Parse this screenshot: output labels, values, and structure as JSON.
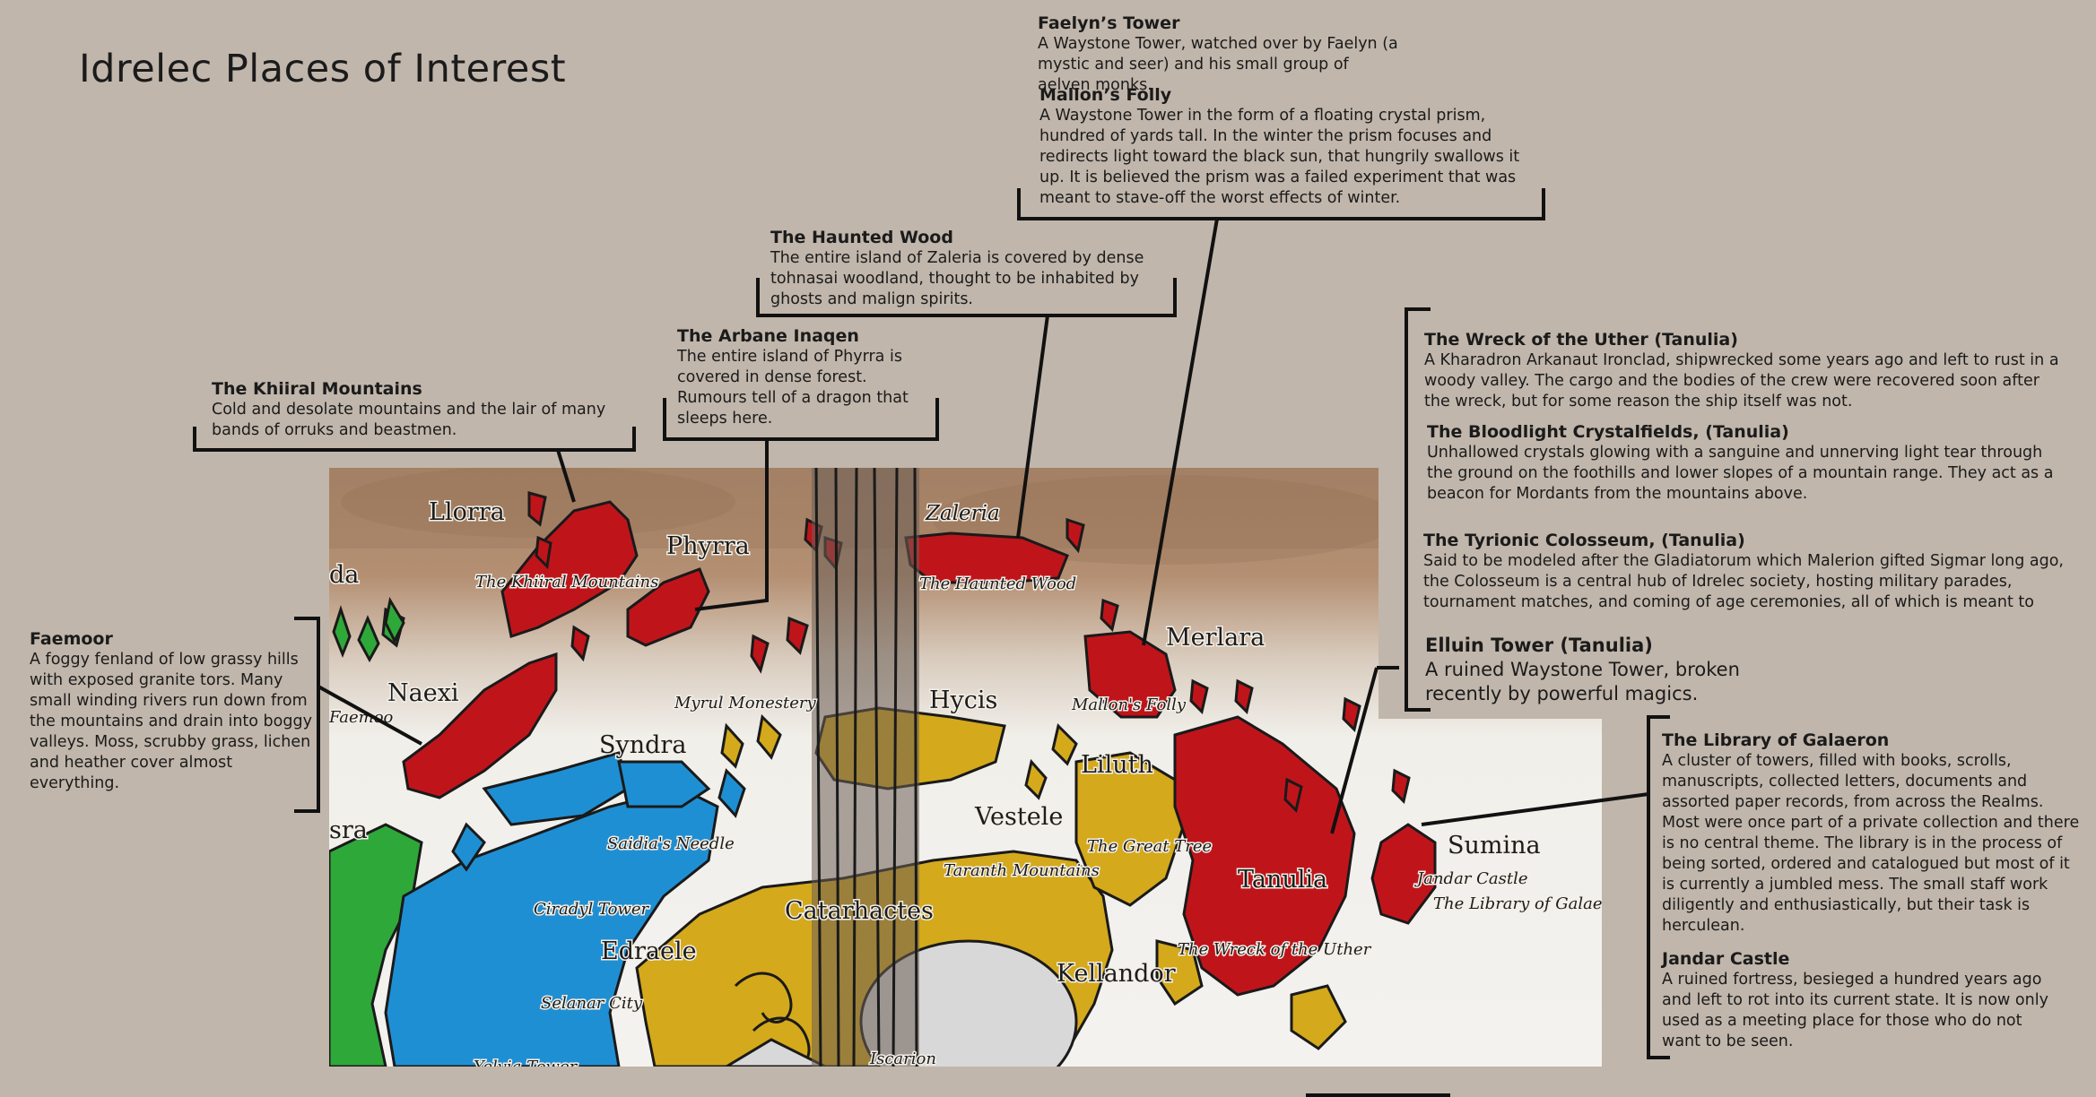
{
  "page_title": "Idrelec Places of Interest",
  "notes": {
    "faelyns_tower": {
      "title": "Faelyn’s Tower",
      "desc": "A Waystone Tower, watched over by Faelyn (a mystic and seer) and his small group of aelven monks."
    },
    "mallons_folly": {
      "title": "Mallon’s Folly",
      "desc": "A Waystone Tower in the form of a floating crystal prism, hundred of yards tall. In the winter the prism focuses and redirects light toward the black sun, that hungrily swallows it up. It is believed the prism was a failed experiment that was meant to stave-off the worst effects of winter."
    },
    "haunted_wood": {
      "title": "The Haunted Wood",
      "desc": "The entire island of Zaleria is covered by dense tohnasai woodland, thought to be inhabited by ghosts and malign spirits."
    },
    "arbane_inaqen": {
      "title": "The Arbane Inaqen",
      "desc": "The entire island of Phyrra is covered in dense forest. Rumours tell of a dragon that sleeps here."
    },
    "khiiral_mountains": {
      "title": "The Khiiral Mountains",
      "desc": "Cold and desolate mountains and the lair of many bands of orruks and beastmen."
    },
    "faemoor": {
      "title": "Faemoor",
      "desc": "A foggy fenland of low grassy hills with exposed granite tors. Many small winding rivers run down from the mountains and drain into boggy valleys. Moss, scrubby grass, lichen and heather cover almost everything."
    },
    "wreck_uther": {
      "title": "The Wreck of the Uther (Tanulia)",
      "desc": "A Kharadron Arkanaut Ironclad, shipwrecked some years ago and left to rust in a woody valley. The cargo and the bodies of the crew were recovered soon after the wreck, but for some reason the ship itself was not."
    },
    "bloodlight": {
      "title": "The Bloodlight Crystalfields, (Tanulia)",
      "desc": "Unhallowed crystals glowing with a sanguine and unnerving light tear through the ground on the foothills and lower slopes of a mountain range. They act as a beacon for Mordants from the mountains above."
    },
    "tyrionic": {
      "title": "The Tyrionic Colosseum, (Tanulia)",
      "desc": " Said to be modeled after the Gladiatorum which Malerion gifted Sigmar long ago, the Colosseum is a central hub of Idrelec society, hosting military parades, tournament matches, and coming of age ceremonies, all of which is meant to"
    },
    "elluin": {
      "title": "Elluin Tower (Tanulia)",
      "desc": "A ruined Waystone Tower, broken recently by powerful magics."
    },
    "library": {
      "title": "The Library of Galaeron",
      "desc": "A cluster of towers, filled with books, scrolls, manuscripts, collected letters, documents and assorted paper records, from across the Realms. Most were once part of a private collection and there is no central theme. The library is in the process of being sorted, ordered and catalogued but most of it is currently a jumbled mess. The small staff work diligently and enthusiastically, but their task is herculean."
    },
    "jandar": {
      "title": "Jandar Castle",
      "desc": "A ruined fortress, besieged a hundred years ago and left to rot into its current state. It is now only used as a meeting place for those who do not want to be seen."
    }
  },
  "map": {
    "regions": {
      "llorra": "Llorra",
      "phyrra": "Phyrra",
      "zaleria": "Zaleria",
      "merlara": "Merlara",
      "naexi": "Naexi",
      "syndra": "Syndra",
      "hycis": "Hycis",
      "liluth": "Liluth",
      "vestele": "Vestele",
      "tanulia": "Tanulia",
      "sumina": "Sumina",
      "edraele": "Edraele",
      "catarhactes": "Catarhactes",
      "kellandor": "Kellandor",
      "da_partial": "da",
      "sra_partial": "sra"
    },
    "places": {
      "khiiral": "The Khiiral Mountains",
      "haunted_wood": "The Haunted Wood",
      "myrul": "Myrul Monestery",
      "mallons_folly": "Mallon's Folly",
      "saidias_needle": "Saidia's Needle",
      "great_tree": "The Great Tree",
      "taranth": "Taranth Mountains",
      "ciradyl": "Ciradyl Tower",
      "selanar": "Selanar City",
      "wreck": "The Wreck of the Uther",
      "jandar": "Jandar Castle",
      "library": "The Library of Galaero",
      "iscarion": "Iscarion",
      "yelvia": "Yelvia Tower",
      "faemoor_partial": "Faemoo"
    },
    "colors": {
      "red": "#c0141b",
      "blue": "#1f8fd3",
      "gold": "#d4a91b",
      "green": "#2fa83a",
      "grey": "#cfcfcf",
      "outline": "#1a1a1a"
    }
  }
}
